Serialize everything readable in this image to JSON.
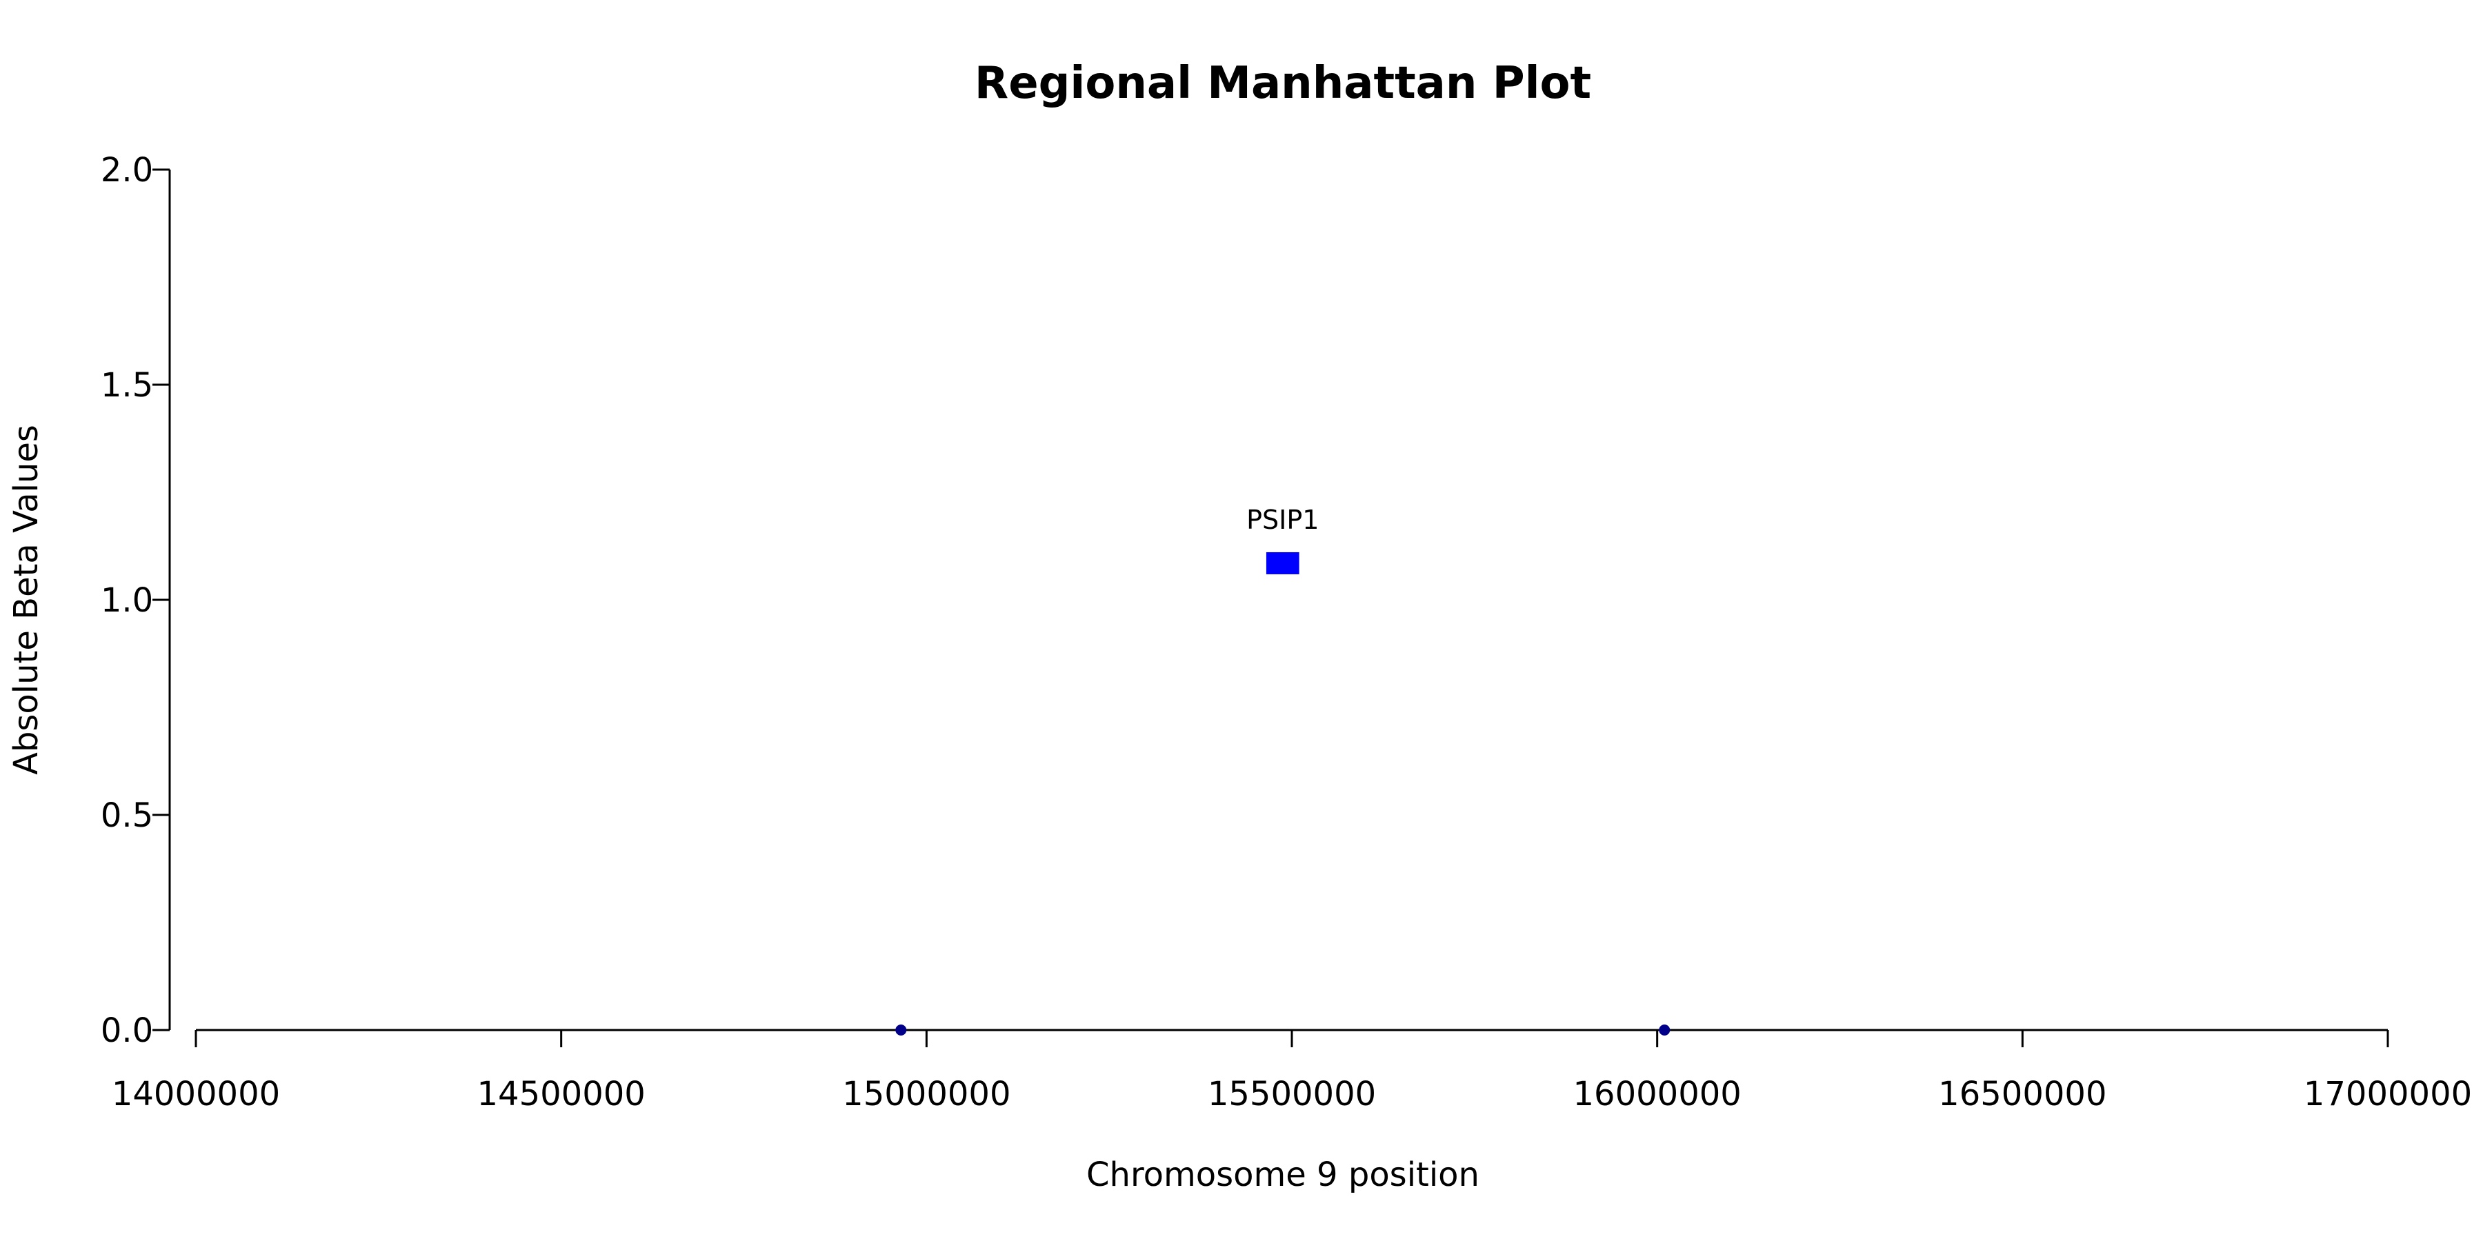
{
  "chart_data": {
    "type": "scatter",
    "title": "Regional Manhattan Plot",
    "xlabel": "Chromosome 9 position",
    "ylabel": "Absolute Beta Values",
    "xlim": [
      14000000,
      17000000
    ],
    "ylim": [
      0,
      2
    ],
    "x_ticks": [
      14000000,
      14500000,
      15000000,
      15500000,
      16000000,
      16500000,
      17000000
    ],
    "x_tick_labels": [
      "14000000",
      "14500000",
      "15000000",
      "15500000",
      "16000000",
      "16500000",
      "17000000"
    ],
    "y_ticks": [
      0,
      0.5,
      1,
      1.5,
      2
    ],
    "y_tick_labels": [
      "0.0",
      "0.5",
      "1.0",
      "1.5",
      "2.0"
    ],
    "grid": false,
    "series": [
      {
        "points": [
          {
            "x": 14965000,
            "y": 0
          },
          {
            "x": 16010000,
            "y": 0
          }
        ],
        "color": "#00008b",
        "marker": "circle"
      }
    ],
    "annotations": [
      {
        "label": "PSIP1",
        "x_start": 15465000,
        "x_end": 15510000,
        "y": 1.085,
        "color": "#0000ff",
        "marker": "rectangle"
      }
    ]
  }
}
